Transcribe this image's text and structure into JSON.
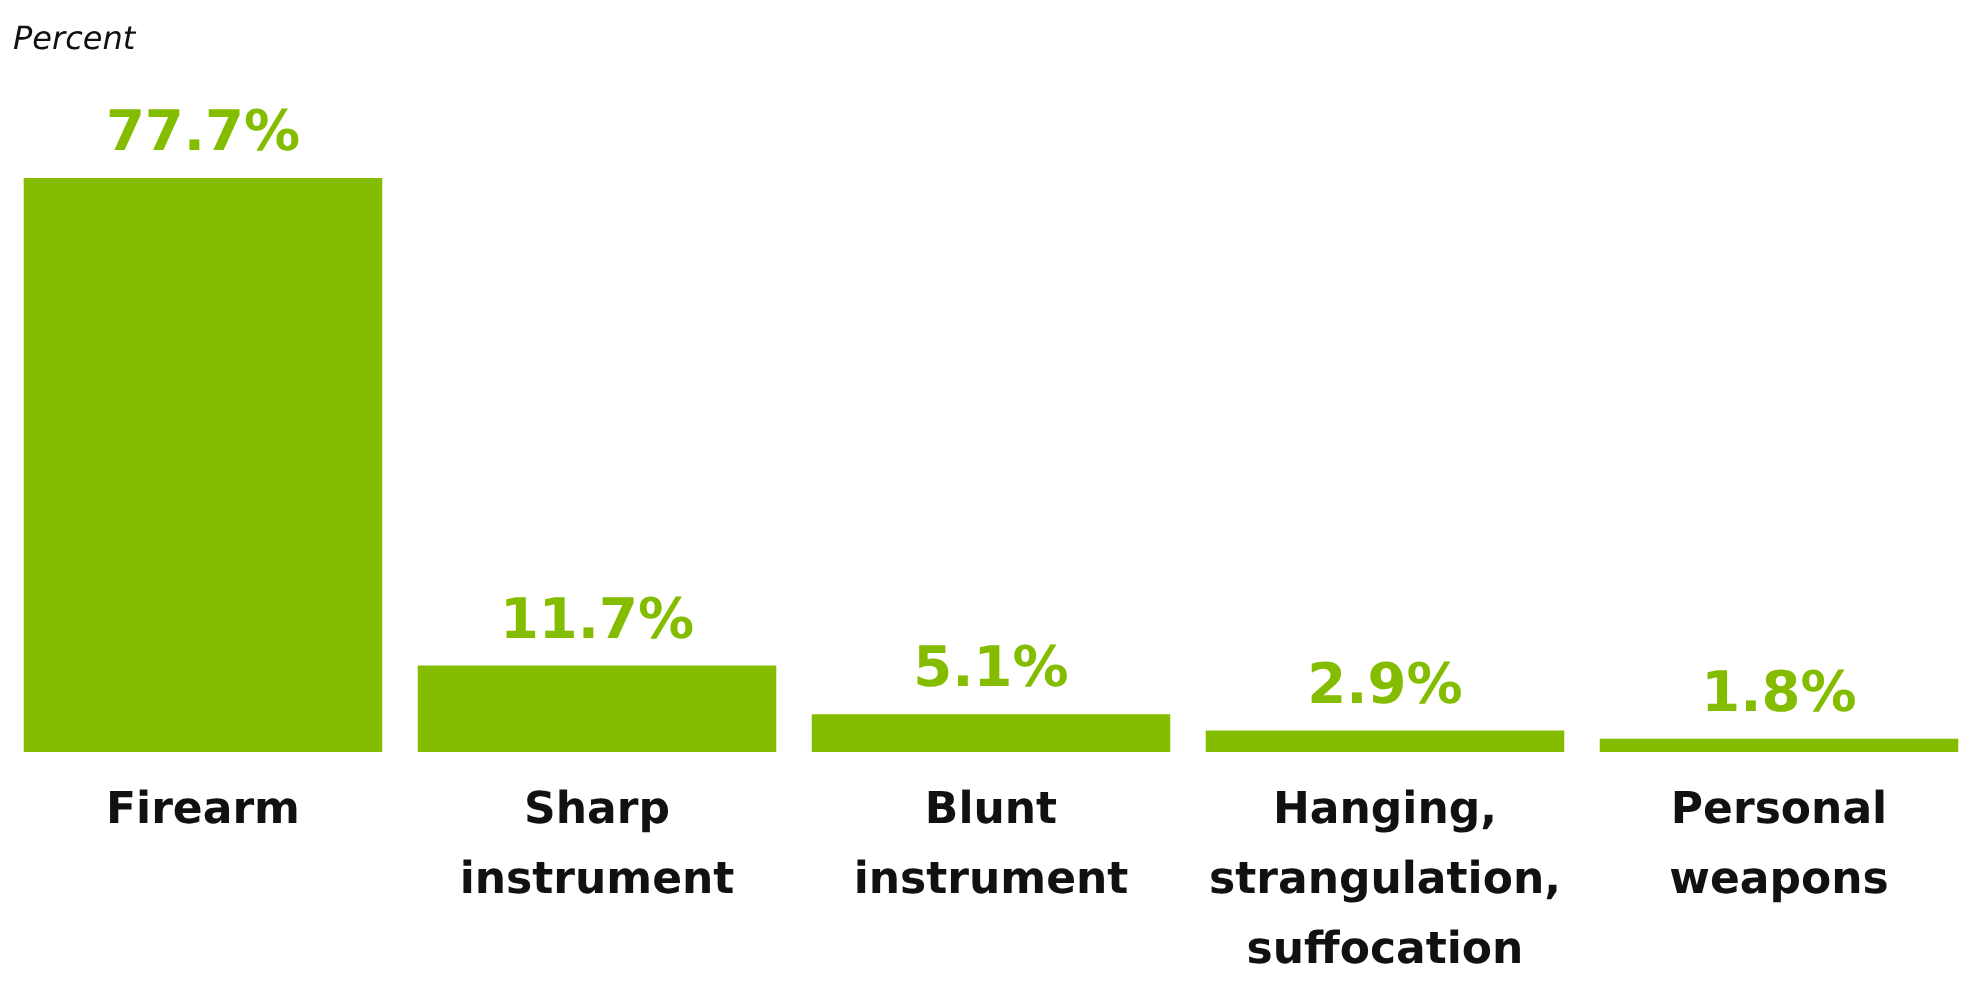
{
  "chart_data": {
    "type": "bar",
    "ylabel": "Percent",
    "categories": [
      "Firearm",
      "Sharp instrument",
      "Blunt instrument",
      "Hanging, strangulation, suffocation",
      "Personal weapons"
    ],
    "values": [
      77.7,
      11.7,
      5.1,
      2.9,
      1.8
    ],
    "value_labels": [
      "77.7%",
      "11.7%",
      "5.1%",
      "2.9%",
      "1.8%"
    ],
    "color": "#84bd00"
  }
}
